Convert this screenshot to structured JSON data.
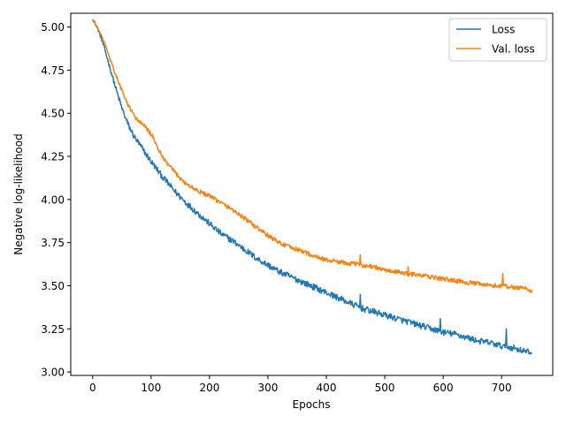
{
  "chart_data": {
    "type": "line",
    "title": "",
    "xlabel": "Epochs",
    "ylabel": "Negative log-likelihood",
    "xlim": [
      -37.5,
      787.5
    ],
    "ylim": [
      2.98,
      5.08
    ],
    "xticks": [
      0,
      100,
      200,
      300,
      400,
      500,
      600,
      700
    ],
    "yticks": [
      3.0,
      3.25,
      3.5,
      3.75,
      4.0,
      4.25,
      4.5,
      4.75,
      5.0
    ],
    "ytick_labels": [
      "3.00",
      "3.25",
      "3.50",
      "3.75",
      "4.00",
      "4.25",
      "4.50",
      "4.75",
      "5.00"
    ],
    "grid": false,
    "legend_position": "top-right",
    "series": [
      {
        "name": "Loss",
        "color": "#1f77b4",
        "noise": 0.018,
        "points": [
          [
            0,
            5.05
          ],
          [
            10,
            4.98
          ],
          [
            20,
            4.88
          ],
          [
            30,
            4.76
          ],
          [
            40,
            4.64
          ],
          [
            50,
            4.53
          ],
          [
            60,
            4.44
          ],
          [
            70,
            4.37
          ],
          [
            80,
            4.32
          ],
          [
            90,
            4.27
          ],
          [
            100,
            4.22
          ],
          [
            120,
            4.13
          ],
          [
            140,
            4.05
          ],
          [
            160,
            3.98
          ],
          [
            180,
            3.92
          ],
          [
            200,
            3.86
          ],
          [
            220,
            3.8
          ],
          [
            240,
            3.76
          ],
          [
            260,
            3.71
          ],
          [
            280,
            3.66
          ],
          [
            300,
            3.62
          ],
          [
            320,
            3.58
          ],
          [
            340,
            3.55
          ],
          [
            360,
            3.52
          ],
          [
            380,
            3.49
          ],
          [
            400,
            3.46
          ],
          [
            420,
            3.43
          ],
          [
            440,
            3.4
          ],
          [
            460,
            3.37
          ],
          [
            480,
            3.35
          ],
          [
            500,
            3.33
          ],
          [
            520,
            3.31
          ],
          [
            540,
            3.29
          ],
          [
            560,
            3.27
          ],
          [
            580,
            3.25
          ],
          [
            600,
            3.23
          ],
          [
            620,
            3.22
          ],
          [
            640,
            3.2
          ],
          [
            660,
            3.18
          ],
          [
            680,
            3.17
          ],
          [
            700,
            3.15
          ],
          [
            720,
            3.14
          ],
          [
            740,
            3.12
          ],
          [
            752,
            3.11
          ]
        ],
        "spikes": [
          [
            458,
            3.45
          ],
          [
            595,
            3.31
          ],
          [
            708,
            3.25
          ]
        ]
      },
      {
        "name": "Val. loss",
        "color": "#ff7f0e",
        "noise": 0.013,
        "points": [
          [
            0,
            5.04
          ],
          [
            10,
            4.99
          ],
          [
            20,
            4.91
          ],
          [
            30,
            4.81
          ],
          [
            40,
            4.72
          ],
          [
            50,
            4.63
          ],
          [
            60,
            4.55
          ],
          [
            70,
            4.49
          ],
          [
            80,
            4.45
          ],
          [
            90,
            4.42
          ],
          [
            100,
            4.38
          ],
          [
            110,
            4.31
          ],
          [
            120,
            4.24
          ],
          [
            140,
            4.16
          ],
          [
            160,
            4.09
          ],
          [
            180,
            4.05
          ],
          [
            200,
            4.02
          ],
          [
            220,
            3.98
          ],
          [
            240,
            3.94
          ],
          [
            260,
            3.89
          ],
          [
            280,
            3.84
          ],
          [
            300,
            3.79
          ],
          [
            320,
            3.75
          ],
          [
            340,
            3.72
          ],
          [
            360,
            3.7
          ],
          [
            380,
            3.67
          ],
          [
            400,
            3.65
          ],
          [
            420,
            3.64
          ],
          [
            440,
            3.63
          ],
          [
            460,
            3.62
          ],
          [
            480,
            3.61
          ],
          [
            500,
            3.59
          ],
          [
            520,
            3.58
          ],
          [
            540,
            3.57
          ],
          [
            560,
            3.56
          ],
          [
            580,
            3.55
          ],
          [
            600,
            3.54
          ],
          [
            620,
            3.53
          ],
          [
            640,
            3.52
          ],
          [
            660,
            3.51
          ],
          [
            680,
            3.5
          ],
          [
            700,
            3.5
          ],
          [
            720,
            3.49
          ],
          [
            740,
            3.49
          ],
          [
            752,
            3.46
          ]
        ],
        "spikes": [
          [
            458,
            3.68
          ],
          [
            540,
            3.61
          ],
          [
            702,
            3.57
          ]
        ]
      }
    ]
  }
}
